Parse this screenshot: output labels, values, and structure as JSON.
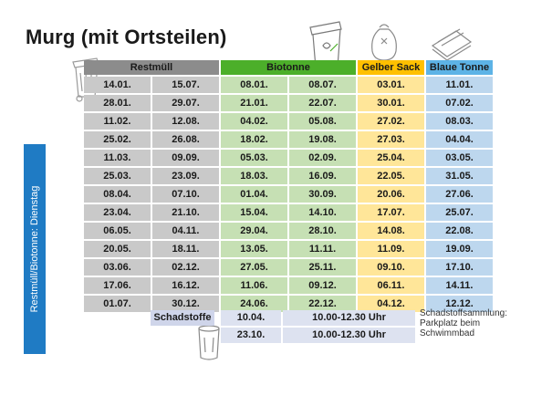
{
  "title": "Murg (mit Ortsteilen)",
  "side_label": "Restmüll/Biotonne: Dienstag",
  "headers": {
    "restmuell": "Restmüll",
    "biotonne": "Biotonne",
    "gelber_sack": "Gelber Sack",
    "blaue_tonne": "Blaue Tonne"
  },
  "colors": {
    "restmuell_header": "#8c8c8c",
    "restmuell_cell": "#c9c9c9",
    "biotonne_header": "#4caf2a",
    "biotonne_cell": "#c6e0b4",
    "gelber_sack_header": "#ffc000",
    "gelber_sack_cell": "#ffe699",
    "blaue_tonne_header": "#5db3e6",
    "blaue_tonne_cell": "#bdd7ee",
    "side_tab": "#1f7bc4"
  },
  "rows": [
    [
      "14.01.",
      "15.07.",
      "08.01.",
      "08.07.",
      "03.01.",
      "11.01."
    ],
    [
      "28.01.",
      "29.07.",
      "21.01.",
      "22.07.",
      "30.01.",
      "07.02."
    ],
    [
      "11.02.",
      "12.08.",
      "04.02.",
      "05.08.",
      "27.02.",
      "08.03."
    ],
    [
      "25.02.",
      "26.08.",
      "18.02.",
      "19.08.",
      "27.03.",
      "04.04."
    ],
    [
      "11.03.",
      "09.09.",
      "05.03.",
      "02.09.",
      "25.04.",
      "03.05."
    ],
    [
      "25.03.",
      "23.09.",
      "18.03.",
      "16.09.",
      "22.05.",
      "31.05."
    ],
    [
      "08.04.",
      "07.10.",
      "01.04.",
      "30.09.",
      "20.06.",
      "27.06."
    ],
    [
      "23.04.",
      "21.10.",
      "15.04.",
      "14.10.",
      "17.07.",
      "25.07."
    ],
    [
      "06.05.",
      "04.11.",
      "29.04.",
      "28.10.",
      "14.08.",
      "22.08."
    ],
    [
      "20.05.",
      "18.11.",
      "13.05.",
      "11.11.",
      "11.09.",
      "19.09."
    ],
    [
      "03.06.",
      "02.12.",
      "27.05.",
      "25.11.",
      "09.10.",
      "17.10."
    ],
    [
      "17.06.",
      "16.12.",
      "11.06.",
      "09.12.",
      "06.11.",
      "14.11."
    ],
    [
      "01.07.",
      "30.12.",
      "24.06.",
      "22.12.",
      "04.12.",
      "12.12."
    ]
  ],
  "schadstoffe": {
    "label": "Schadstoffe",
    "dates": [
      {
        "date": "10.04.",
        "time": "10.00-12.30 Uhr"
      },
      {
        "date": "23.10.",
        "time": "10.00-12.30 Uhr"
      }
    ],
    "note_lines": [
      "Schadstoffsammlung:",
      "Parkplatz beim",
      "Schwimmbad"
    ]
  },
  "icons": [
    "restmuell-bin-icon",
    "biotonne-bin-icon",
    "gelber-sack-icon",
    "paper-stack-icon",
    "schadstoff-bin-icon"
  ]
}
